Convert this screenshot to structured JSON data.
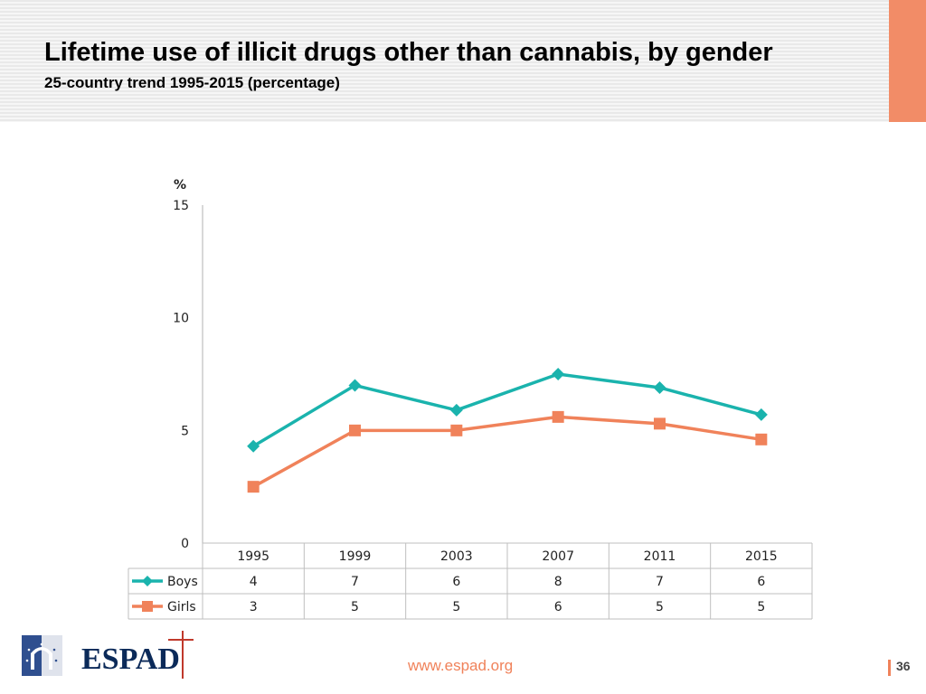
{
  "slide": {
    "title": "Lifetime use of illicit drugs other than cannabis, by gender",
    "subtitle": "25-country trend 1995-2015 (percentage)",
    "footer_url": "www.espad.org",
    "page_number": "36",
    "logo_text": "ESPAD"
  },
  "colors": {
    "header_accent": "#f28c67",
    "boys": "#1ab3ad",
    "girls": "#f0825a",
    "link": "#f0825a"
  },
  "chart_data": {
    "type": "line",
    "ylabel": "%",
    "ylim": [
      0,
      15
    ],
    "yticks": [
      "0",
      "5",
      "10",
      "15"
    ],
    "categories": [
      "1995",
      "1999",
      "2003",
      "2007",
      "2011",
      "2015"
    ],
    "series": [
      {
        "name": "Boys",
        "marker": "diamond",
        "values": [
          4.3,
          7.0,
          5.9,
          7.5,
          6.9,
          5.7
        ],
        "table_values": [
          "4",
          "7",
          "6",
          "8",
          "7",
          "6"
        ]
      },
      {
        "name": "Girls",
        "marker": "square",
        "values": [
          2.5,
          5.0,
          5.0,
          5.6,
          5.3,
          4.6
        ],
        "table_values": [
          "3",
          "5",
          "5",
          "6",
          "5",
          "5"
        ]
      }
    ],
    "grid": false,
    "data_table": true
  }
}
